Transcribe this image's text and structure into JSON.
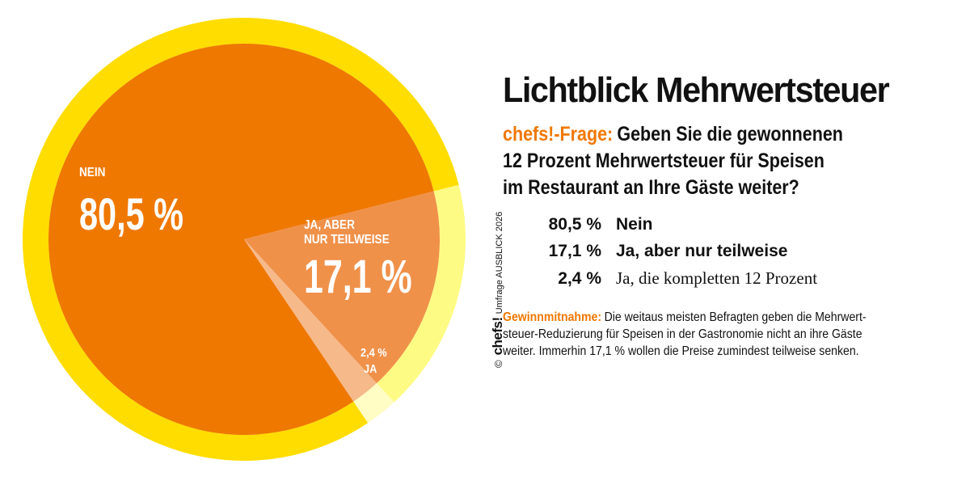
{
  "title": "Lichtblick Mehrwertsteuer",
  "question": {
    "prefix": "chefs!-Frage:",
    "lines": [
      "Geben Sie die gewonnenen",
      "12 Prozent Mehrwertsteuer für Speisen",
      "im Restaurant an Ihre Gäste weiter?"
    ]
  },
  "results": [
    {
      "pct": "80,5 %",
      "label": "Nein"
    },
    {
      "pct": "17,1 %",
      "label": "Ja, aber nur teilweise"
    },
    {
      "pct": "2,4 %",
      "label": "Ja, die kompletten 12 Prozent"
    }
  ],
  "note": {
    "label": "Gewinnmitnahme:",
    "lines": [
      "Die weitaus meisten Befragten geben die Mehrwert-",
      "steuer-Reduzierung für Speisen in der Gastronomie nicht an ihre Gäste",
      "weiter. Immerhin 17,1 % wollen die Preise zumindest teilweise senken."
    ]
  },
  "credit": {
    "copyright": "©",
    "logo": "chefs!",
    "text": "Umfrage AUSBLICK 2026"
  },
  "chart_data": {
    "type": "pie",
    "title": "Lichtblick Mehrwertsteuer",
    "slices": [
      {
        "name": "Nein",
        "label_name": "NEIN",
        "label_value": "80,5 %",
        "value": 80.5,
        "color": "#ef7800",
        "ring_color": "#ffdd00"
      },
      {
        "name": "Ja, aber nur teilweise",
        "label_name": "JA, ABER NUR TEILWEISE",
        "label_value": "17,1 %",
        "value": 17.1,
        "color": "#f0914a",
        "ring_color": "#fefb84"
      },
      {
        "name": "Ja, die kompletten 12 Prozent",
        "label_name": "JA",
        "label_value": "2,4 %",
        "value": 2.4,
        "color": "#f6b98a",
        "ring_color": "#fffcc4"
      }
    ]
  }
}
